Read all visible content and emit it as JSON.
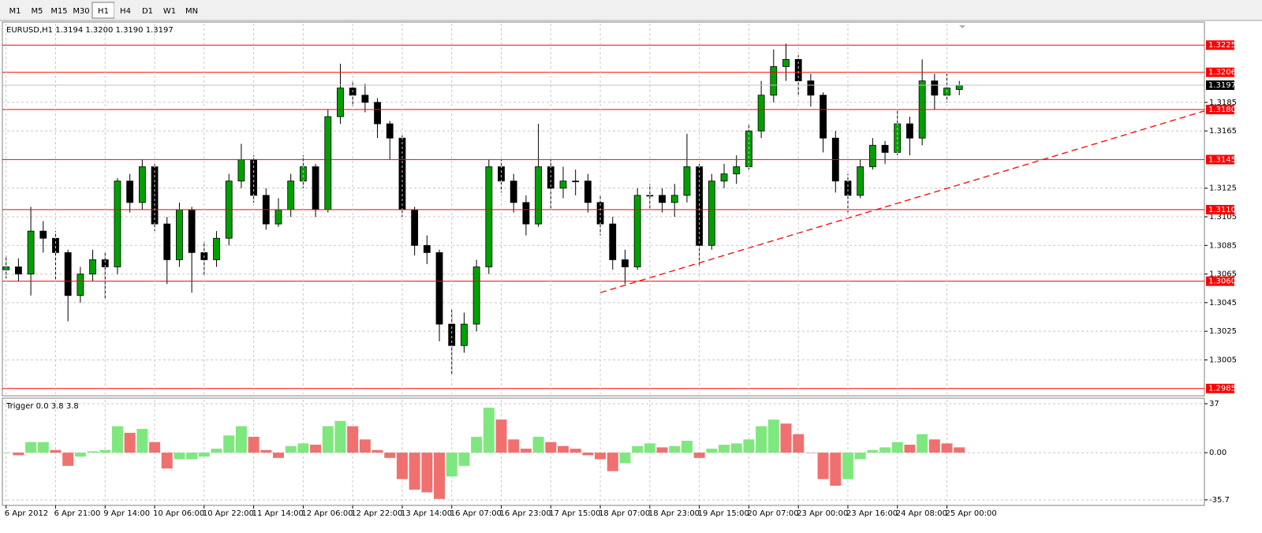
{
  "toolbar": {
    "timeframes": [
      "M1",
      "M5",
      "M15",
      "M30",
      "H1",
      "H4",
      "D1",
      "W1",
      "MN"
    ],
    "selected": "H1"
  },
  "chart_data": [
    {
      "type": "candlestick",
      "title": "EURUSD,H1  1.3194 1.3200 1.3190 1.3197",
      "up_color": "#00a000",
      "down_color": "#000000",
      "open": [
        1.3068,
        1.307,
        1.3065,
        1.3095,
        1.309,
        1.308,
        1.305,
        1.3065,
        1.3075,
        1.307,
        1.313,
        1.3115,
        1.314,
        1.31,
        1.3075,
        1.311,
        1.308,
        1.3075,
        1.309,
        1.313,
        1.3145,
        1.312,
        1.31,
        1.311,
        1.313,
        1.314,
        1.311,
        1.3175,
        1.3195,
        1.319,
        1.3185,
        1.317,
        1.316,
        1.311,
        1.3085,
        1.308,
        1.303,
        1.3015,
        1.303,
        1.307,
        1.314,
        1.313,
        1.3115,
        1.31,
        1.314,
        1.3125,
        1.313,
        1.313,
        1.3115,
        1.31,
        1.3075,
        1.307,
        1.312,
        1.312,
        1.3115,
        1.312,
        1.314,
        1.3085,
        1.313,
        1.3135,
        1.314,
        1.3165,
        1.319,
        1.321,
        1.3215,
        1.32,
        1.319,
        1.316,
        1.313,
        1.312,
        1.314,
        1.3155,
        1.315,
        1.317,
        1.316,
        1.32,
        1.319,
        1.3194
      ],
      "high": [
        1.3078,
        1.3076,
        1.3112,
        1.3102,
        1.3095,
        1.3082,
        1.307,
        1.3082,
        1.308,
        1.3132,
        1.3135,
        1.3145,
        1.3142,
        1.3105,
        1.3115,
        1.3112,
        1.3088,
        1.3095,
        1.3135,
        1.3156,
        1.3148,
        1.3125,
        1.3118,
        1.3135,
        1.3148,
        1.3142,
        1.318,
        1.3212,
        1.32,
        1.3198,
        1.3188,
        1.3172,
        1.3162,
        1.3112,
        1.3092,
        1.3082,
        1.304,
        1.3038,
        1.3075,
        1.3145,
        1.3145,
        1.3135,
        1.312,
        1.317,
        1.3145,
        1.314,
        1.3138,
        1.3135,
        1.312,
        1.3105,
        1.3082,
        1.3125,
        1.3128,
        1.3125,
        1.3128,
        1.3163,
        1.3142,
        1.3135,
        1.3142,
        1.3148,
        1.317,
        1.32,
        1.3222,
        1.3226,
        1.3218,
        1.3205,
        1.3192,
        1.3165,
        1.3135,
        1.3145,
        1.316,
        1.3158,
        1.318,
        1.3175,
        1.3215,
        1.3205,
        1.3205,
        1.32
      ],
      "low": [
        1.3062,
        1.306,
        1.305,
        1.308,
        1.306,
        1.3032,
        1.3045,
        1.306,
        1.3048,
        1.3065,
        1.3108,
        1.311,
        1.3095,
        1.3058,
        1.307,
        1.3052,
        1.3064,
        1.307,
        1.3085,
        1.3125,
        1.3115,
        1.3096,
        1.3098,
        1.3105,
        1.3125,
        1.3105,
        1.3108,
        1.317,
        1.3182,
        1.3178,
        1.316,
        1.3145,
        1.3105,
        1.3078,
        1.3072,
        1.3018,
        1.2995,
        1.301,
        1.3025,
        1.3065,
        1.3122,
        1.3108,
        1.3092,
        1.3098,
        1.311,
        1.3118,
        1.312,
        1.3108,
        1.3092,
        1.3068,
        1.3058,
        1.3068,
        1.311,
        1.3108,
        1.3105,
        1.3115,
        1.307,
        1.3082,
        1.3125,
        1.3128,
        1.3138,
        1.316,
        1.3185,
        1.32,
        1.319,
        1.3182,
        1.315,
        1.3122,
        1.3108,
        1.3118,
        1.3138,
        1.3142,
        1.3148,
        1.3148,
        1.3155,
        1.318,
        1.3185,
        1.319
      ],
      "close": [
        1.307,
        1.3065,
        1.3095,
        1.309,
        1.308,
        1.305,
        1.3065,
        1.3075,
        1.307,
        1.313,
        1.3115,
        1.314,
        1.31,
        1.3075,
        1.311,
        1.308,
        1.3075,
        1.309,
        1.313,
        1.3145,
        1.312,
        1.31,
        1.311,
        1.313,
        1.314,
        1.311,
        1.3175,
        1.3195,
        1.319,
        1.3185,
        1.317,
        1.316,
        1.311,
        1.3085,
        1.308,
        1.303,
        1.3015,
        1.303,
        1.307,
        1.314,
        1.313,
        1.3115,
        1.31,
        1.314,
        1.3125,
        1.313,
        1.313,
        1.3115,
        1.31,
        1.3075,
        1.307,
        1.312,
        1.312,
        1.3115,
        1.312,
        1.314,
        1.3085,
        1.313,
        1.3135,
        1.314,
        1.3165,
        1.319,
        1.321,
        1.3215,
        1.32,
        1.319,
        1.316,
        1.313,
        1.312,
        1.314,
        1.3155,
        1.315,
        1.317,
        1.316,
        1.32,
        1.319,
        1.3195,
        1.3197
      ],
      "xlim": [
        -0.3,
        96.8
      ],
      "xticks": [
        {
          "value": 0,
          "label": "6 Apr 2012"
        },
        {
          "value": 4,
          "label": "6 Apr 21:00"
        },
        {
          "value": 8,
          "label": "9 Apr 14:00"
        },
        {
          "value": 12,
          "label": "10 Apr 06:00"
        },
        {
          "value": 16,
          "label": "10 Apr 22:00"
        },
        {
          "value": 20,
          "label": "11 Apr 14:00"
        },
        {
          "value": 24,
          "label": "12 Apr 06:00"
        },
        {
          "value": 28,
          "label": "12 Apr 22:00"
        },
        {
          "value": 32,
          "label": "13 Apr 14:00"
        },
        {
          "value": 36,
          "label": "16 Apr 07:00"
        },
        {
          "value": 40,
          "label": "16 Apr 23:00"
        },
        {
          "value": 44,
          "label": "17 Apr 15:00"
        },
        {
          "value": 48,
          "label": "18 Apr 07:00"
        },
        {
          "value": 52,
          "label": "18 Apr 23:00"
        },
        {
          "value": 56,
          "label": "19 Apr 15:00"
        },
        {
          "value": 60,
          "label": "20 Apr 07:00"
        },
        {
          "value": 64,
          "label": "23 Apr 00:00"
        },
        {
          "value": 68,
          "label": "23 Apr 16:00"
        },
        {
          "value": 72,
          "label": "24 Apr 08:00"
        },
        {
          "value": 76,
          "label": "25 Apr 00:00"
        }
      ],
      "ylim": [
        1.2981,
        1.324
      ],
      "yticks": [
        1.3185,
        1.3165,
        1.3125,
        1.3105,
        1.3085,
        1.3065,
        1.3045,
        1.3025,
        1.3005
      ],
      "grid": true,
      "levels": [
        {
          "value": 1.3225,
          "label": "1.3225"
        },
        {
          "value": 1.3206,
          "label": "1.3206"
        },
        {
          "value": 1.318,
          "label": "1.3180"
        },
        {
          "value": 1.3145,
          "label": "1.3145"
        },
        {
          "value": 1.311,
          "label": "1.3110"
        },
        {
          "value": 1.306,
          "label": "1.3060"
        },
        {
          "value": 1.2985,
          "label": "1.2985"
        }
      ],
      "level_color": "#ff0000",
      "current_price": 1.3197,
      "trendline": {
        "points": [
          [
            48,
            1.3052
          ],
          [
            96.8,
            1.3179
          ]
        ],
        "color": "#ff0000"
      }
    },
    {
      "type": "histogram",
      "title": "Trigger 0.0 3.8 3.8",
      "up_color": "#7ee87e",
      "down_color": "#f07070",
      "values": [
        0,
        -2,
        8,
        8,
        2,
        -10,
        -3,
        1,
        2,
        20,
        15,
        18,
        8,
        -12,
        -5,
        -5,
        -3,
        3,
        13,
        20,
        12,
        2,
        -4,
        5,
        7,
        6,
        20,
        24,
        20,
        10,
        2,
        -4,
        -20,
        -28,
        -30,
        -35,
        -18,
        -10,
        12,
        34,
        25,
        10,
        3,
        12,
        8,
        5,
        3,
        -2,
        -5,
        -14,
        -8,
        5,
        7,
        4,
        5,
        9,
        -4,
        3,
        6,
        7,
        10,
        20,
        25,
        22,
        14,
        0,
        -20,
        -25,
        -20,
        -5,
        2,
        4,
        8,
        6,
        14,
        10,
        7,
        4
      ],
      "xlim": [
        -0.3,
        96.8
      ],
      "ylim": [
        -39.3,
        40
      ],
      "yticks": [
        37,
        {
          "value": 0,
          "label": "0.00"
        },
        -35.7
      ],
      "grid": true
    }
  ]
}
